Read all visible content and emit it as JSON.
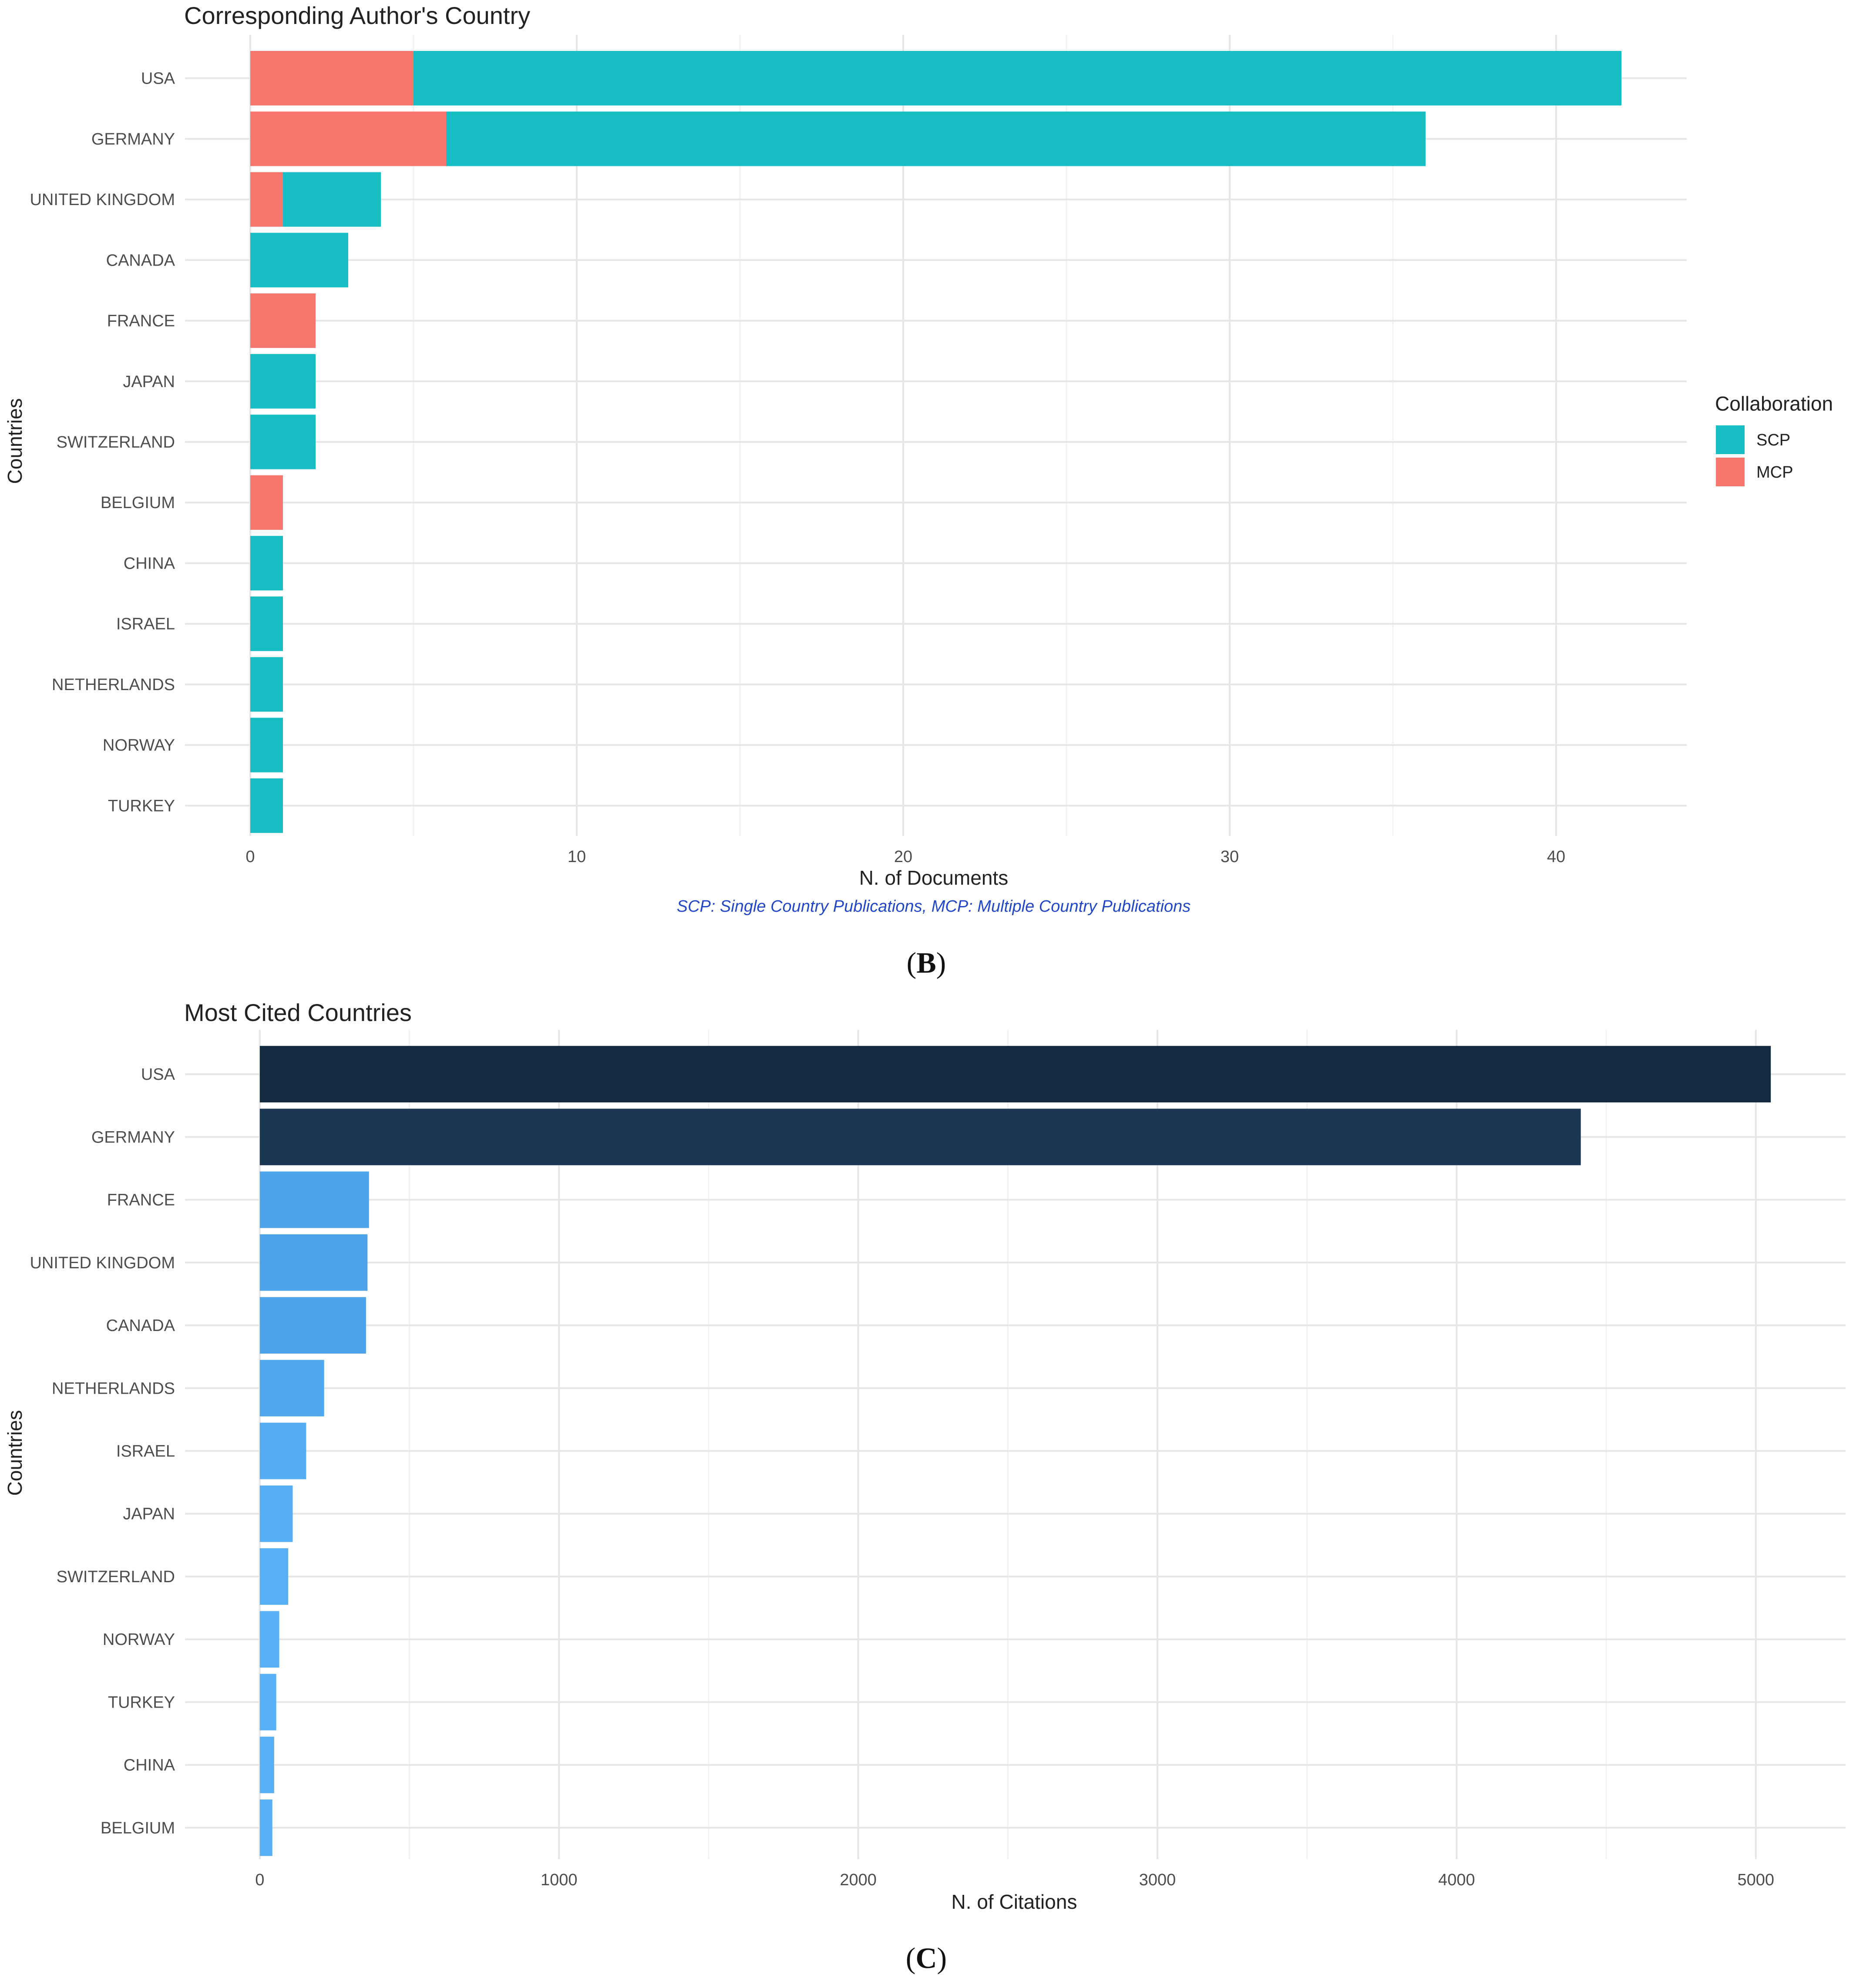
{
  "panels": {
    "b": {
      "letter": "B"
    },
    "c": {
      "letter": "C"
    }
  },
  "chart_data": [
    {
      "type": "bar",
      "orientation": "horizontal",
      "stacked": true,
      "title": "Corresponding Author's Country",
      "xlabel": "N. of Documents",
      "ylabel": "Countries",
      "caption": "SCP: Single Country Publications, MCP: Multiple Country Publications",
      "categories": [
        "USA",
        "GERMANY",
        "UNITED KINGDOM",
        "CANADA",
        "FRANCE",
        "JAPAN",
        "SWITZERLAND",
        "BELGIUM",
        "CHINA",
        "ISRAEL",
        "NETHERLANDS",
        "NORWAY",
        "TURKEY"
      ],
      "series": [
        {
          "name": "MCP",
          "color": "#f8766d",
          "values": [
            5,
            6,
            1,
            0,
            2,
            0,
            0,
            1,
            0,
            0,
            0,
            0,
            0
          ]
        },
        {
          "name": "SCP",
          "color": "#17bfc4",
          "values": [
            37,
            30,
            3,
            3,
            0,
            2,
            2,
            0,
            1,
            1,
            1,
            1,
            1
          ]
        }
      ],
      "xlim": [
        -2,
        44
      ],
      "xticks": [
        0,
        10,
        20,
        30,
        40
      ],
      "legend": {
        "title": "Collaboration",
        "order": [
          "SCP",
          "MCP"
        ],
        "position": "right"
      },
      "grid": true
    },
    {
      "type": "bar",
      "orientation": "horizontal",
      "title": "Most Cited Countries",
      "xlabel": "N. of Citations",
      "ylabel": "Countries",
      "categories": [
        "USA",
        "GERMANY",
        "FRANCE",
        "UNITED KINGDOM",
        "CANADA",
        "NETHERLANDS",
        "ISRAEL",
        "JAPAN",
        "SWITZERLAND",
        "NORWAY",
        "TURKEY",
        "CHINA",
        "BELGIUM"
      ],
      "values": [
        5050,
        4415,
        365,
        360,
        355,
        215,
        155,
        110,
        95,
        65,
        55,
        48,
        42
      ],
      "colors": [
        "#132a40",
        "#1c3754",
        "#4ea4ea",
        "#4ea4ea",
        "#4ea4ea",
        "#51a7ee",
        "#55acf3",
        "#56aef5",
        "#57aff6",
        "#58b0f7",
        "#58b0f7",
        "#58b0f7",
        "#58b0f7"
      ],
      "xlim": [
        -250,
        5300
      ],
      "xticks": [
        0,
        1000,
        2000,
        3000,
        4000,
        5000
      ],
      "grid": true
    }
  ]
}
